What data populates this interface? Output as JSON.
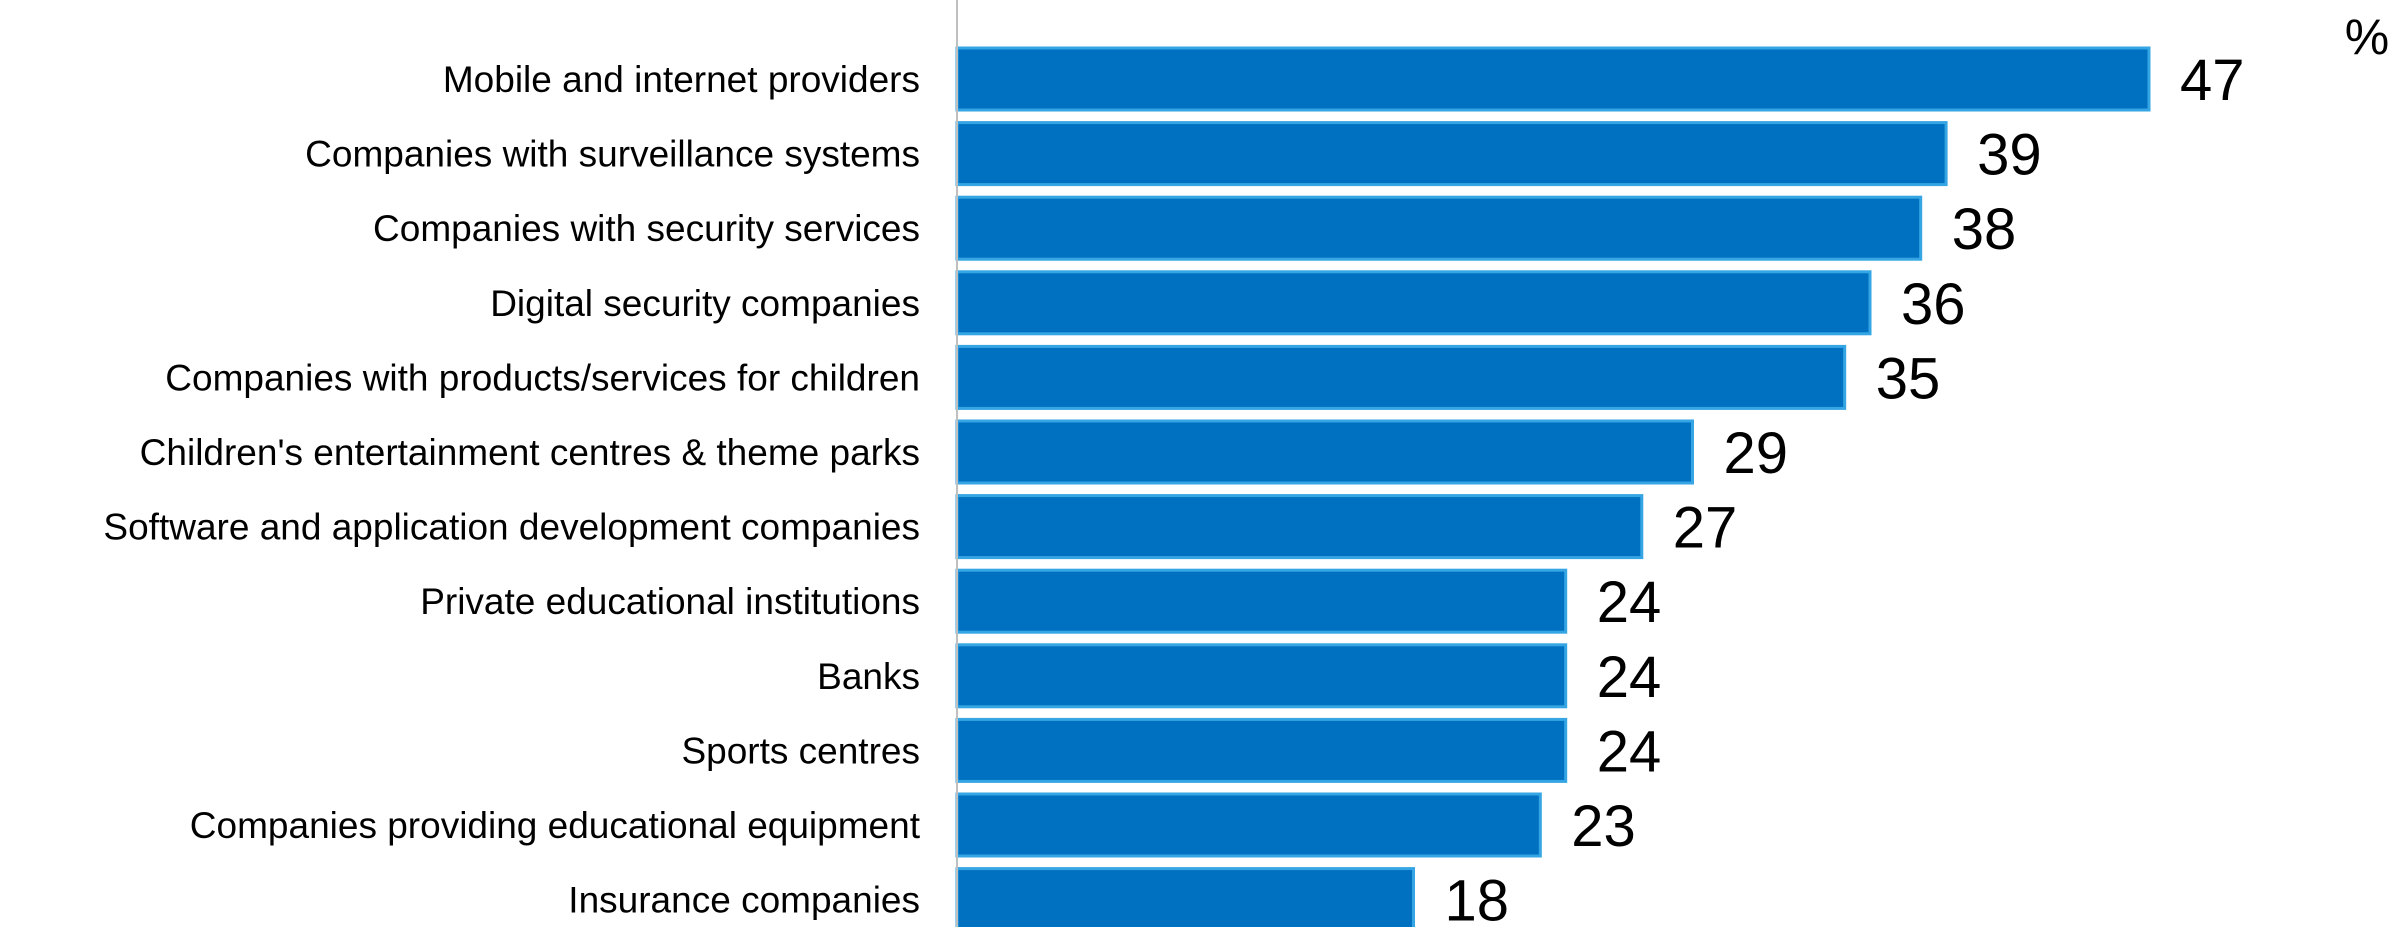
{
  "chart_data": {
    "type": "bar",
    "orientation": "horizontal",
    "unit_label": "%",
    "categories": [
      "Mobile and internet providers",
      "Companies with surveillance systems",
      "Companies with security services",
      "Digital security companies",
      "Companies with products/services for children",
      "Children's entertainment centres & theme parks",
      "Software and application development companies",
      "Private educational institutions",
      "Banks",
      "Sports centres",
      "Companies providing educational equipment",
      "Insurance companies"
    ],
    "values": [
      47,
      39,
      38,
      36,
      35,
      29,
      27,
      24,
      24,
      24,
      23,
      18
    ],
    "xlim": [
      0,
      47
    ],
    "data_labels": true,
    "legend": "none",
    "grid": false,
    "colors": {
      "bar_fill": "#0070C0",
      "bar_edge": "#35A6E3",
      "axis": "#BFBFBF"
    }
  }
}
